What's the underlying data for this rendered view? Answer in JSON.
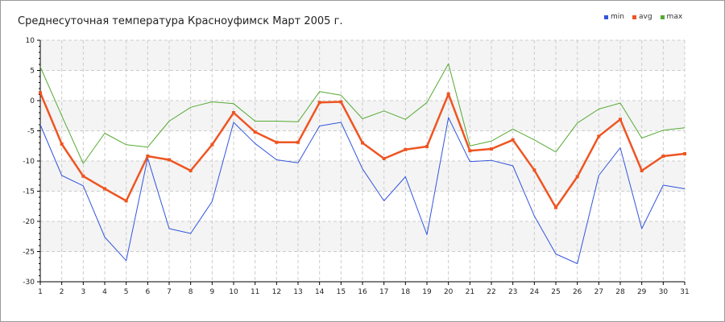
{
  "chart_data": {
    "type": "line",
    "title": "Среднесуточная температура Красноуфимск  Март 2005 г.",
    "xlabel": "",
    "ylabel": "",
    "x": [
      1,
      2,
      3,
      4,
      5,
      6,
      7,
      8,
      9,
      10,
      11,
      12,
      13,
      14,
      15,
      16,
      17,
      18,
      19,
      20,
      21,
      22,
      23,
      24,
      25,
      26,
      27,
      28,
      29,
      30,
      31
    ],
    "xlim": [
      1,
      31
    ],
    "ylim": [
      -30,
      10
    ],
    "yticks": [
      10,
      5,
      0,
      -5,
      -10,
      -15,
      -20,
      -25,
      -30
    ],
    "grid": true,
    "legend_position": "top-right",
    "series": [
      {
        "name": "min",
        "color": "#3355dd",
        "width": 1,
        "values": [
          -4,
          -12.4,
          -14.1,
          -22.6,
          -26.5,
          -9.5,
          -21.2,
          -22,
          -16.7,
          -3.6,
          -7.1,
          -9.8,
          -10.3,
          -4.2,
          -3.6,
          -11.3,
          -16.6,
          -12.6,
          -22.2,
          -2.8,
          -10.1,
          -9.9,
          -10.8,
          -19.1,
          -25.4,
          -27,
          -12.4,
          -7.8,
          -21.2,
          -14,
          -14.6
        ]
      },
      {
        "name": "avg",
        "color": "#ee5522",
        "width": 2.5,
        "values": [
          1.3,
          -7.2,
          -12.5,
          -14.6,
          -16.6,
          -9.2,
          -9.8,
          -11.6,
          -7.3,
          -2,
          -5.2,
          -6.9,
          -6.9,
          -0.3,
          -0.2,
          -7,
          -9.6,
          -8.1,
          -7.6,
          1.1,
          -8.3,
          -8,
          -6.5,
          -11.5,
          -17.7,
          -12.6,
          -5.9,
          -3.1,
          -11.6,
          -9.2,
          -8.8
        ]
      },
      {
        "name": "max",
        "color": "#55aa33",
        "width": 1,
        "values": [
          5.6,
          -2.5,
          -10.4,
          -5.4,
          -7.3,
          -7.7,
          -3.4,
          -1.1,
          -0.2,
          -0.5,
          -3.4,
          -3.4,
          -3.5,
          1.5,
          0.9,
          -3,
          -1.7,
          -3.1,
          -0.3,
          6.1,
          -7.5,
          -6.7,
          -4.7,
          -6.5,
          -8.5,
          -3.7,
          -1.4,
          -0.4,
          -6.2,
          -4.9,
          -4.5
        ]
      }
    ]
  },
  "colors": {
    "grid": "#cccccc",
    "band": "#f4f4f4",
    "axis": "#000000"
  }
}
